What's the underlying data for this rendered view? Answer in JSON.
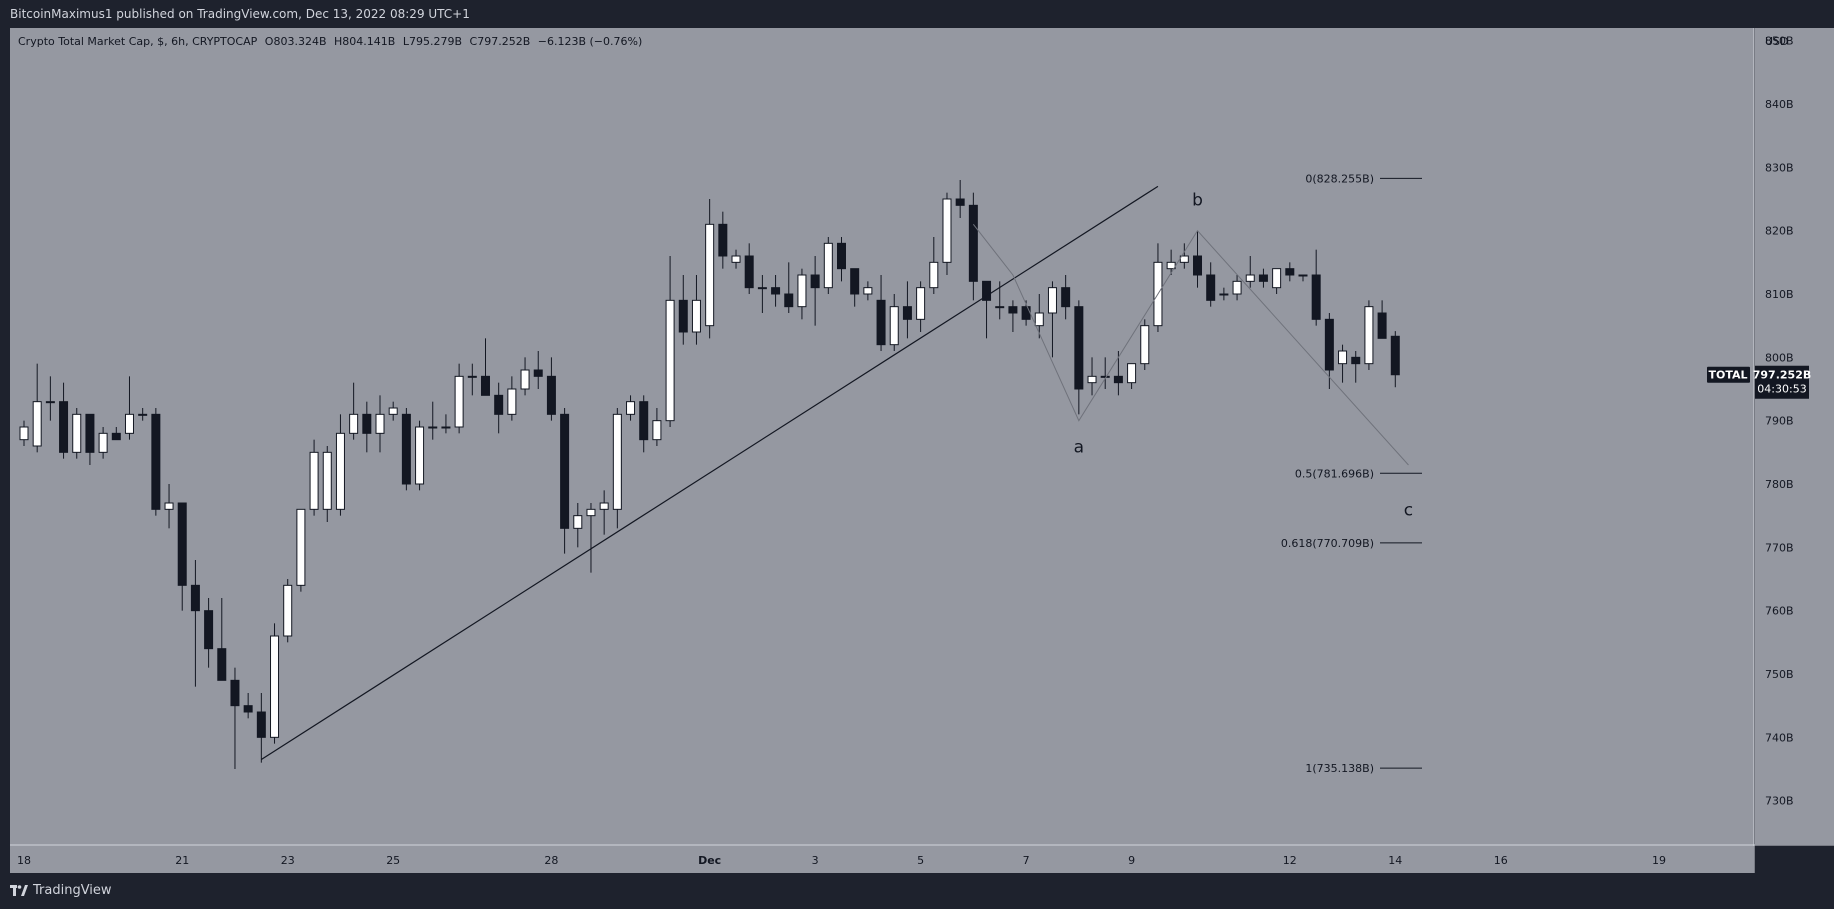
{
  "header": {
    "publish_text": "BitcoinMaximus1 published on TradingView.com, Dec 13, 2022 08:29 UTC+1"
  },
  "legend": {
    "symbol": "Crypto Total Market Cap, $, 6h, CRYPTOCAP",
    "o_label": "O",
    "o_value": "803.324B",
    "h_label": "H",
    "h_value": "804.141B",
    "l_label": "L",
    "l_value": "795.279B",
    "c_label": "C",
    "c_value": "797.252B",
    "change": "−6.123B (−0.76%)"
  },
  "footer": {
    "brand": "TradingView",
    "logo_icon": "tradingview-logo-icon"
  },
  "colors": {
    "chart_bg": "#9598a1",
    "frame_bg": "#1e222d",
    "up_candle": "#ffffff",
    "down_candle": "#131722",
    "text": "#131722",
    "axis_text": "#d1d4dc"
  },
  "chart_data": {
    "type": "candlestick",
    "symbol": "TOTAL",
    "timeframe": "6h",
    "currency": "USD",
    "ylim": [
      723,
      852
    ],
    "y_unit_label": "USD",
    "y_ticks": [
      {
        "value": 850,
        "label": "850B"
      },
      {
        "value": 840,
        "label": "840B"
      },
      {
        "value": 830,
        "label": "830B"
      },
      {
        "value": 820,
        "label": "820B"
      },
      {
        "value": 810,
        "label": "810B"
      },
      {
        "value": 800,
        "label": "800B"
      },
      {
        "value": 790,
        "label": "790B"
      },
      {
        "value": 780,
        "label": "780B"
      },
      {
        "value": 770,
        "label": "770B"
      },
      {
        "value": 760,
        "label": "760B"
      },
      {
        "value": 750,
        "label": "750B"
      },
      {
        "value": 740,
        "label": "740B"
      },
      {
        "value": 730,
        "label": "730B"
      }
    ],
    "x_ticks": [
      {
        "date": "2022-11-18",
        "label": "18"
      },
      {
        "date": "2022-11-21",
        "label": "21"
      },
      {
        "date": "2022-11-23",
        "label": "23"
      },
      {
        "date": "2022-11-25",
        "label": "25"
      },
      {
        "date": "2022-11-28",
        "label": "28"
      },
      {
        "date": "2022-12-01",
        "label": "Dec"
      },
      {
        "date": "2022-12-03",
        "label": "3"
      },
      {
        "date": "2022-12-05",
        "label": "5"
      },
      {
        "date": "2022-12-07",
        "label": "7"
      },
      {
        "date": "2022-12-09",
        "label": "9"
      },
      {
        "date": "2022-12-12",
        "label": "12"
      },
      {
        "date": "2022-12-14",
        "label": "14"
      },
      {
        "date": "2022-12-16",
        "label": "16"
      },
      {
        "date": "2022-12-19",
        "label": "19"
      }
    ],
    "candles": [
      [
        "2022-11-18 00:00",
        787,
        790,
        786,
        789
      ],
      [
        "2022-11-18 06:00",
        786,
        799,
        785,
        793
      ],
      [
        "2022-11-18 12:00",
        793,
        797,
        790,
        793
      ],
      [
        "2022-11-18 18:00",
        793,
        796,
        784,
        785
      ],
      [
        "2022-11-19 00:00",
        785,
        792,
        784,
        791
      ],
      [
        "2022-11-19 06:00",
        791,
        791,
        783,
        785
      ],
      [
        "2022-11-19 12:00",
        785,
        789,
        784,
        788
      ],
      [
        "2022-11-19 18:00",
        788,
        789,
        787,
        787
      ],
      [
        "2022-11-20 00:00",
        788,
        797,
        787,
        791
      ],
      [
        "2022-11-20 06:00",
        791,
        792,
        790,
        791
      ],
      [
        "2022-11-20 12:00",
        791,
        792,
        775,
        776
      ],
      [
        "2022-11-20 18:00",
        776,
        780,
        773,
        777
      ],
      [
        "2022-11-21 00:00",
        777,
        777,
        760,
        764
      ],
      [
        "2022-11-21 06:00",
        764,
        768,
        748,
        760
      ],
      [
        "2022-11-21 12:00",
        760,
        762,
        751,
        754
      ],
      [
        "2022-11-21 18:00",
        754,
        762,
        749,
        749
      ],
      [
        "2022-11-22 00:00",
        749,
        751,
        735,
        745
      ],
      [
        "2022-11-22 06:00",
        745,
        747,
        743,
        744
      ],
      [
        "2022-11-22 12:00",
        744,
        747,
        736,
        740
      ],
      [
        "2022-11-22 18:00",
        740,
        758,
        739,
        756
      ],
      [
        "2022-11-23 00:00",
        756,
        765,
        755,
        764
      ],
      [
        "2022-11-23 06:00",
        764,
        776,
        763,
        776
      ],
      [
        "2022-11-23 12:00",
        776,
        787,
        775,
        785
      ],
      [
        "2022-11-23 18:00",
        776,
        786,
        774,
        785
      ],
      [
        "2022-11-24 00:00",
        776,
        791,
        775,
        788
      ],
      [
        "2022-11-24 06:00",
        788,
        796,
        787,
        791
      ],
      [
        "2022-11-24 12:00",
        791,
        793,
        785,
        788
      ],
      [
        "2022-11-24 18:00",
        788,
        794,
        785,
        791
      ],
      [
        "2022-11-25 00:00",
        791,
        793,
        790,
        792
      ],
      [
        "2022-11-25 06:00",
        791,
        792,
        779,
        780
      ],
      [
        "2022-11-25 12:00",
        780,
        790,
        779,
        789
      ],
      [
        "2022-11-25 18:00",
        789,
        793,
        787,
        789
      ],
      [
        "2022-11-26 00:00",
        789,
        791,
        788,
        789
      ],
      [
        "2022-11-26 06:00",
        789,
        799,
        788,
        797
      ],
      [
        "2022-11-26 12:00",
        797,
        799,
        794,
        797
      ],
      [
        "2022-11-26 18:00",
        797,
        803,
        794,
        794
      ],
      [
        "2022-11-27 00:00",
        794,
        796,
        788,
        791
      ],
      [
        "2022-11-27 06:00",
        791,
        797,
        790,
        795
      ],
      [
        "2022-11-27 12:00",
        795,
        800,
        794,
        798
      ],
      [
        "2022-11-27 18:00",
        798,
        801,
        795,
        797
      ],
      [
        "2022-11-28 00:00",
        797,
        800,
        790,
        791
      ],
      [
        "2022-11-28 06:00",
        791,
        792,
        769,
        773
      ],
      [
        "2022-11-28 12:00",
        773,
        777,
        770,
        775
      ],
      [
        "2022-11-28 18:00",
        775,
        777,
        766,
        776
      ],
      [
        "2022-11-29 00:00",
        776,
        779,
        772,
        777
      ],
      [
        "2022-11-29 06:00",
        776,
        792,
        773,
        791
      ],
      [
        "2022-11-29 12:00",
        791,
        794,
        790,
        793
      ],
      [
        "2022-11-29 18:00",
        793,
        794,
        785,
        787
      ],
      [
        "2022-11-30 00:00",
        787,
        792,
        786,
        790
      ],
      [
        "2022-11-30 06:00",
        790,
        816,
        789,
        809
      ],
      [
        "2022-11-30 12:00",
        809,
        813,
        802,
        804
      ],
      [
        "2022-11-30 18:00",
        804,
        813,
        802,
        809
      ],
      [
        "2022-12-01 00:00",
        805,
        825,
        803,
        821
      ],
      [
        "2022-12-01 06:00",
        821,
        823,
        814,
        816
      ],
      [
        "2022-12-01 12:00",
        815,
        817,
        814,
        816
      ],
      [
        "2022-12-01 18:00",
        816,
        818,
        810,
        811
      ],
      [
        "2022-12-02 00:00",
        811,
        813,
        807,
        811
      ],
      [
        "2022-12-02 06:00",
        811,
        813,
        808,
        810
      ],
      [
        "2022-12-02 12:00",
        810,
        815,
        807,
        808
      ],
      [
        "2022-12-02 18:00",
        808,
        814,
        806,
        813
      ],
      [
        "2022-12-03 00:00",
        813,
        816,
        805,
        811
      ],
      [
        "2022-12-03 06:00",
        811,
        819,
        810,
        818
      ],
      [
        "2022-12-03 12:00",
        818,
        819,
        812,
        814
      ],
      [
        "2022-12-03 18:00",
        814,
        814,
        808,
        810
      ],
      [
        "2022-12-04 00:00",
        810,
        812,
        809,
        811
      ],
      [
        "2022-12-04 06:00",
        809,
        813,
        801,
        802
      ],
      [
        "2022-12-04 12:00",
        802,
        810,
        801,
        808
      ],
      [
        "2022-12-04 18:00",
        808,
        812,
        803,
        806
      ],
      [
        "2022-12-05 00:00",
        806,
        812,
        804,
        811
      ],
      [
        "2022-12-05 06:00",
        811,
        819,
        810,
        815
      ],
      [
        "2022-12-05 12:00",
        815,
        826,
        813,
        825
      ],
      [
        "2022-12-05 18:00",
        825,
        828,
        822,
        824
      ],
      [
        "2022-12-06 00:00",
        824,
        826,
        809,
        812
      ],
      [
        "2022-12-06 06:00",
        812,
        812,
        803,
        809
      ],
      [
        "2022-12-06 12:00",
        808,
        812,
        806,
        808
      ],
      [
        "2022-12-06 18:00",
        808,
        809,
        804,
        807
      ],
      [
        "2022-12-07 00:00",
        808,
        809,
        805,
        806
      ],
      [
        "2022-12-07 06:00",
        805,
        810,
        803,
        807
      ],
      [
        "2022-12-07 12:00",
        807,
        812,
        800,
        811
      ],
      [
        "2022-12-07 18:00",
        811,
        813,
        806,
        808
      ],
      [
        "2022-12-08 00:00",
        808,
        809,
        791,
        795
      ],
      [
        "2022-12-08 06:00",
        796,
        800,
        794,
        797
      ],
      [
        "2022-12-08 12:00",
        797,
        800,
        795,
        797
      ],
      [
        "2022-12-08 18:00",
        797,
        801,
        794,
        796
      ],
      [
        "2022-12-09 00:00",
        796,
        799,
        795,
        799
      ],
      [
        "2022-12-09 06:00",
        799,
        806,
        798,
        805
      ],
      [
        "2022-12-09 12:00",
        805,
        818,
        804,
        815
      ],
      [
        "2022-12-09 18:00",
        814,
        817,
        813,
        815
      ],
      [
        "2022-12-10 00:00",
        815,
        818,
        814,
        816
      ],
      [
        "2022-12-10 06:00",
        816,
        820,
        811,
        813
      ],
      [
        "2022-12-10 12:00",
        813,
        815,
        808,
        809
      ],
      [
        "2022-12-10 18:00",
        810,
        811,
        809,
        810
      ],
      [
        "2022-12-11 00:00",
        810,
        813,
        809,
        812
      ],
      [
        "2022-12-11 06:00",
        812,
        816,
        811,
        813
      ],
      [
        "2022-12-11 12:00",
        813,
        814,
        811,
        812
      ],
      [
        "2022-12-11 18:00",
        811,
        814,
        810,
        814
      ],
      [
        "2022-12-12 00:00",
        814,
        815,
        812,
        813
      ],
      [
        "2022-12-12 06:00",
        813,
        813,
        812,
        813
      ],
      [
        "2022-12-12 12:00",
        813,
        817,
        805,
        806
      ],
      [
        "2022-12-12 18:00",
        806,
        807,
        795,
        798
      ],
      [
        "2022-12-13 00:00",
        799,
        802,
        796,
        801
      ],
      [
        "2022-12-13 06:00",
        800,
        801,
        796,
        799
      ],
      [
        "2022-12-13 12:00",
        799,
        809,
        798,
        808
      ],
      [
        "2022-12-13 18:00",
        807,
        809,
        803,
        803
      ],
      [
        "2022-12-14 00:00",
        803.324,
        804.141,
        795.279,
        797.252
      ]
    ],
    "candle_fields": [
      "time",
      "open",
      "high",
      "low",
      "close"
    ],
    "last_price": {
      "label": "TOTAL",
      "value": "797.252B",
      "countdown": "04:30:53",
      "price": 797.252
    },
    "fib_levels": [
      {
        "ratio": 0,
        "price": 828.255,
        "label": "0(828.255B)"
      },
      {
        "ratio": 0.5,
        "price": 781.696,
        "label": "0.5(781.696B)"
      },
      {
        "ratio": 0.618,
        "price": 770.709,
        "label": "0.618(770.709B)"
      },
      {
        "ratio": 1,
        "price": 735.138,
        "label": "1(735.138B)"
      }
    ],
    "trendline": {
      "from": [
        "2022-11-22 12:00",
        736.5
      ],
      "to": [
        "2022-12-09 12:00",
        827
      ]
    },
    "wave_path": [
      [
        "2022-12-06 00:00",
        821
      ],
      [
        "2022-12-06 18:00",
        813
      ],
      [
        "2022-12-08 00:00",
        790
      ],
      [
        "2022-12-10 06:00",
        820
      ],
      [
        "2022-12-14 06:00",
        783
      ]
    ],
    "wave_labels": [
      {
        "text": "a",
        "time": "2022-12-08 00:00",
        "value": 785
      },
      {
        "text": "b",
        "time": "2022-12-10 06:00",
        "value": 824
      },
      {
        "text": "c",
        "time": "2022-12-14 06:00",
        "value": 775
      }
    ]
  }
}
